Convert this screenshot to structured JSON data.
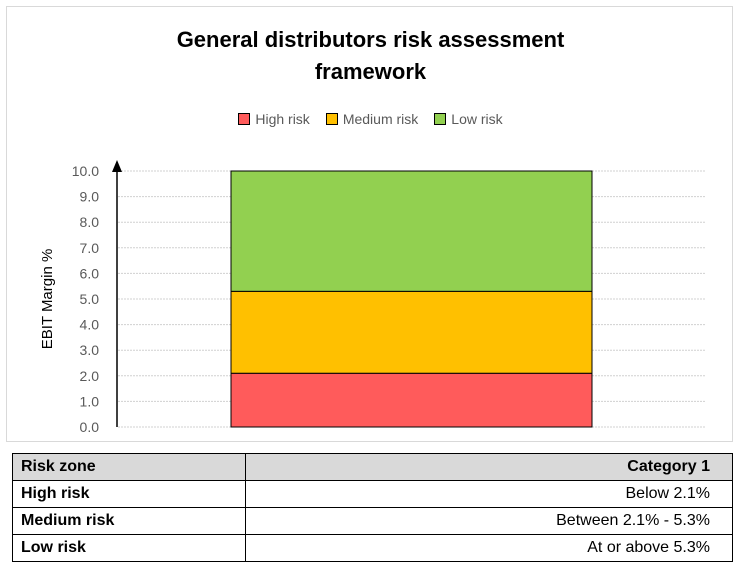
{
  "chart_data": {
    "type": "bar",
    "stacked": true,
    "title": "General distributors risk assessment framework",
    "ylabel": "EBIT Margin %",
    "ylim": [
      0,
      10
    ],
    "yticks": [
      "0.0",
      "1.0",
      "2.0",
      "3.0",
      "4.0",
      "5.0",
      "6.0",
      "7.0",
      "8.0",
      "9.0",
      "10.0"
    ],
    "grid": true,
    "legend_placement": "top",
    "categories": [
      "Category 1"
    ],
    "series": [
      {
        "name": "High risk",
        "values": [
          2.1
        ],
        "color": "#FF5B5B"
      },
      {
        "name": "Medium risk",
        "values": [
          3.2
        ],
        "color": "#FFC000"
      },
      {
        "name": "Low risk",
        "values": [
          4.7
        ],
        "color": "#92D050"
      }
    ]
  },
  "table": {
    "header": [
      "Risk zone",
      "Category 1"
    ],
    "rows": [
      [
        "High risk",
        "Below 2.1%"
      ],
      [
        "Medium risk",
        "Between 2.1% - 5.3%"
      ],
      [
        "Low risk",
        "At or above 5.3%"
      ]
    ]
  }
}
